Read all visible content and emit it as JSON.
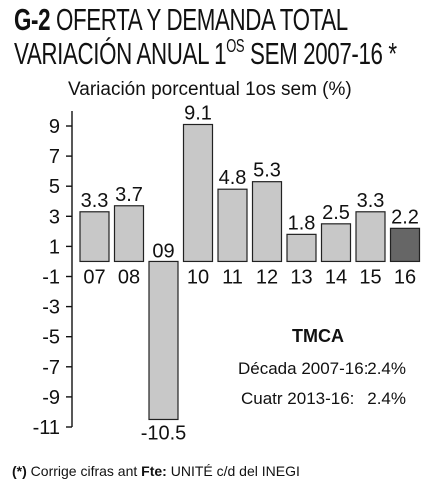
{
  "header": {
    "code": "G-2",
    "title_line1": "OFERTA Y DEMANDA TOTAL",
    "title_line2_main": "VARIACIÓN ANUAL 1",
    "title_line2_sup": "OS",
    "title_line2_tail": " SEM 2007-16 *"
  },
  "chart_data": {
    "type": "bar",
    "subtitle": "Variación porcentual 1os sem (%)",
    "categories": [
      "07",
      "08",
      "09",
      "10",
      "11",
      "12",
      "13",
      "14",
      "15",
      "16"
    ],
    "values": [
      3.3,
      3.7,
      -10.5,
      9.1,
      4.8,
      5.3,
      1.8,
      2.5,
      3.3,
      2.2
    ],
    "value_labels": [
      "3.3",
      "3.7",
      "-10.5",
      "9.1",
      "4.8",
      "5.3",
      "1.8",
      "2.5",
      "3.3",
      "2.2"
    ],
    "ylim": [
      -11,
      10
    ],
    "yticks": [
      9,
      7,
      5,
      3,
      1,
      -1,
      -3,
      -5,
      -7,
      -9,
      -11
    ],
    "ytick_labels": [
      "9",
      "7",
      "5",
      "3",
      "1",
      "-1",
      "-3",
      "-5",
      "-7",
      "-9",
      "-11"
    ],
    "bar_color": "#c8c8c8",
    "highlight_color": "#666666",
    "highlight_index": 9,
    "grid": false
  },
  "tmca": {
    "heading": "TMCA",
    "row1_label": "Década 2007-16:",
    "row1_value": "2.4%",
    "row2_label": "Cuatr 2013-16:",
    "row2_value": "2.4%"
  },
  "footer": {
    "mark": "(*)",
    "note": " Corrige cifras ant ",
    "source_label": "Fte:",
    "source_text": " UNITÉ c/d del INEGI"
  }
}
